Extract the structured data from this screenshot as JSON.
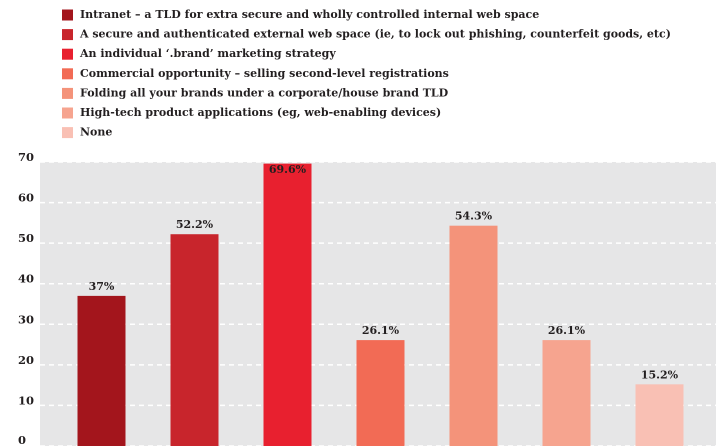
{
  "chart_data": {
    "type": "bar",
    "categories": [
      "Intranet – a TLD for extra secure and wholly controlled internal web space",
      "A secure and authenticated external web space (ie, to lock out phishing, counterfeit goods, etc)",
      "An individual ‘.brand’ marketing strategy",
      "Commercial opportunity – selling second-level registrations",
      "Folding all your brands under a corporate/house brand TLD",
      "High-tech product applications (eg, web-enabling devices)",
      "None"
    ],
    "values": [
      37,
      52.2,
      69.6,
      26.1,
      54.3,
      26.1,
      15.2
    ],
    "value_labels": [
      "37%",
      "52.2%",
      "69.6%",
      "26.1%",
      "54.3%",
      "26.1%",
      "15.2%"
    ],
    "colors": [
      "#a3151c",
      "#c8252c",
      "#e8202f",
      "#f26b55",
      "#f4937a",
      "#f6a48f",
      "#f9c0b4"
    ],
    "ylim": [
      0,
      70
    ],
    "yticks": [
      0,
      10,
      20,
      30,
      40,
      50,
      60,
      70
    ],
    "grid": true,
    "legend": "top"
  }
}
